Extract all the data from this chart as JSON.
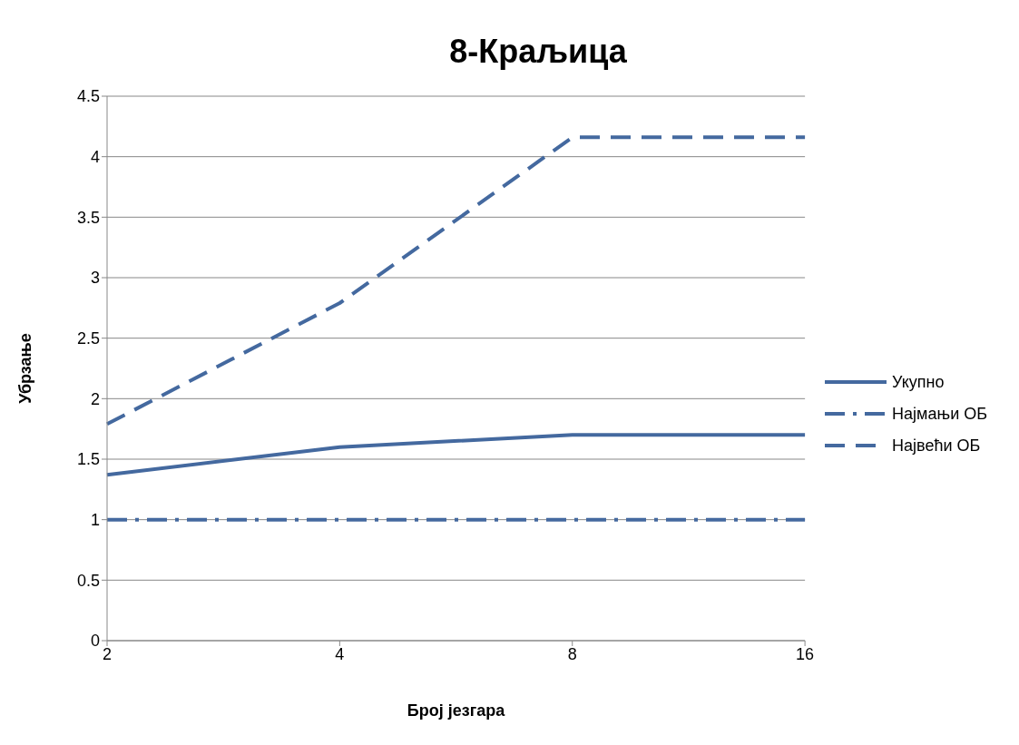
{
  "chart_data": {
    "type": "line",
    "title": "8-Краљица",
    "xlabel": "Број језгара",
    "ylabel": "Убрзање",
    "categories": [
      "2",
      "4",
      "8",
      "16"
    ],
    "series": [
      {
        "name": "Укупно",
        "color": "#44699f",
        "line_style": "solid",
        "values": [
          1.37,
          1.6,
          1.7,
          1.7
        ]
      },
      {
        "name": "Најмањи ОБ",
        "color": "#44699f",
        "line_style": "dashdot",
        "values": [
          1,
          1,
          1,
          1
        ]
      },
      {
        "name": "Највећи ОБ",
        "color": "#44699f",
        "line_style": "dashed",
        "values": [
          1.79,
          2.79,
          4.16,
          4.16
        ]
      }
    ],
    "ylim": [
      0,
      4.5
    ],
    "yticks": [
      0,
      0.5,
      1,
      1.5,
      2,
      2.5,
      3,
      3.5,
      4,
      4.5
    ],
    "grid": "y",
    "legend": "right",
    "marker": "none"
  }
}
